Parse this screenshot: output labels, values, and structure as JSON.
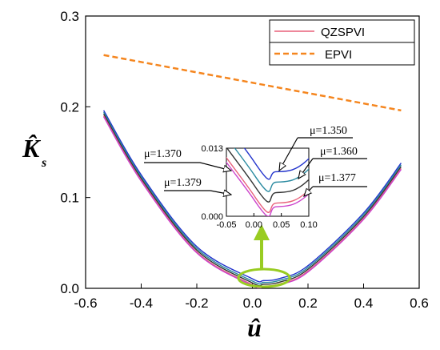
{
  "chart_data": {
    "type": "line",
    "xlabel": "û",
    "ylabel": "K̂",
    "ylabel_subscript": "s",
    "xlim": [
      -0.6,
      0.6
    ],
    "ylim": [
      0.0,
      0.3
    ],
    "xticks": [
      "-0.6",
      "-0.4",
      "-0.2",
      "0.0",
      "0.2",
      "0.4",
      "0.6"
    ],
    "yticks": [
      "0.0",
      "0.1",
      "0.2",
      "0.3"
    ],
    "grid": false,
    "legend_position": "top-right",
    "legend": [
      {
        "label": "QZSPVI",
        "color": "#e8607a",
        "style": "solid"
      },
      {
        "label": "EPVI",
        "color": "#f5861f",
        "style": "dashed"
      }
    ],
    "series": [
      {
        "name": "EPVI",
        "color": "#f5861f",
        "style": "dashed",
        "x": [
          -0.535,
          0.535
        ],
        "y": [
          0.257,
          0.196
        ]
      },
      {
        "name": "μ=1.350",
        "color": "#2233cc",
        "x": [
          -0.535,
          -0.4,
          -0.2,
          0.0,
          0.04,
          0.1,
          0.2,
          0.4,
          0.535
        ],
        "y": [
          0.196,
          0.125,
          0.046,
          0.0105,
          0.0085,
          0.011,
          0.025,
          0.083,
          0.138
        ]
      },
      {
        "name": "μ=1.360",
        "color": "#2a8aa0",
        "x": [
          -0.535,
          -0.4,
          -0.2,
          0.0,
          0.04,
          0.1,
          0.2,
          0.4,
          0.535
        ],
        "y": [
          0.194,
          0.123,
          0.044,
          0.008,
          0.0065,
          0.009,
          0.023,
          0.081,
          0.136
        ]
      },
      {
        "name": "μ=1.370",
        "color": "#333333",
        "x": [
          -0.535,
          -0.4,
          -0.2,
          0.0,
          0.04,
          0.1,
          0.2,
          0.4,
          0.535
        ],
        "y": [
          0.192,
          0.121,
          0.042,
          0.006,
          0.0045,
          0.007,
          0.021,
          0.079,
          0.134
        ]
      },
      {
        "name": "μ=1.377",
        "color": "#e8607a",
        "x": [
          -0.535,
          -0.4,
          -0.2,
          0.0,
          0.04,
          0.1,
          0.2,
          0.4,
          0.535
        ],
        "y": [
          0.19,
          0.119,
          0.04,
          0.004,
          0.0025,
          0.005,
          0.019,
          0.077,
          0.132
        ]
      },
      {
        "name": "μ=1.379",
        "color": "#cc44cc",
        "x": [
          -0.535,
          -0.4,
          -0.2,
          0.0,
          0.04,
          0.1,
          0.2,
          0.4,
          0.535
        ],
        "y": [
          0.189,
          0.118,
          0.039,
          0.0032,
          0.0018,
          0.0043,
          0.018,
          0.076,
          0.131
        ]
      }
    ],
    "inset": {
      "xlim": [
        -0.05,
        0.1
      ],
      "ylim": [
        0.0,
        0.013
      ],
      "xticks": [
        "-0.05",
        "0.00",
        "0.05",
        "0.10"
      ],
      "yticks": [
        "0.000",
        "0.013"
      ],
      "labels": [
        "μ=1.350",
        "μ=1.360",
        "μ=1.370",
        "μ=1.377",
        "μ=1.379"
      ]
    },
    "highlight": {
      "shape": "ellipse",
      "color": "#99cc22",
      "cx": 0.05,
      "cy": 0.007
    }
  }
}
